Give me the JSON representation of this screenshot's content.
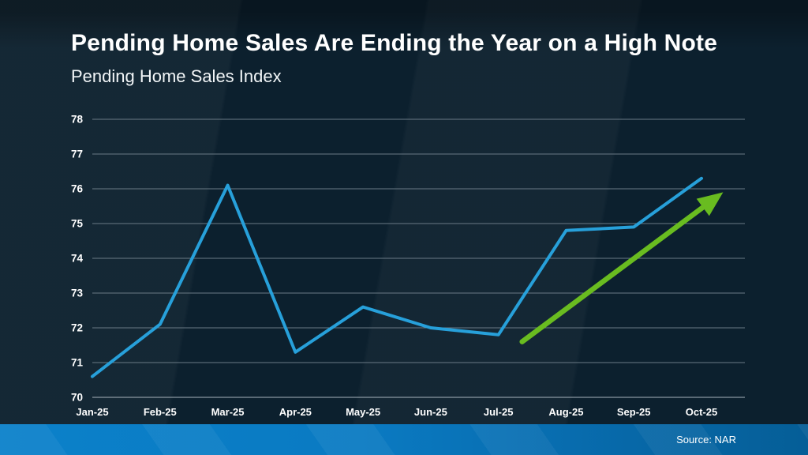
{
  "slide": {
    "title": "Pending Home Sales Are Ending the Year on a High Note",
    "subtitle": "Pending Home Sales Index",
    "source": "Source: NAR"
  },
  "colors": {
    "background": "#0c202e",
    "line": "#27a0da",
    "arrow": "#69bc20",
    "gridline": "#6a7a85",
    "baseline": "#a9b5bd",
    "tick_text": "#ffffff",
    "footer_left": "#0b81ca",
    "footer_right": "#055e97"
  },
  "chart_data": {
    "type": "line",
    "title": "Pending Home Sales Are Ending the Year on a High Note",
    "subtitle": "Pending Home Sales Index",
    "categories": [
      "Jan-25",
      "Feb-25",
      "Mar-25",
      "Apr-25",
      "May-25",
      "Jun-25",
      "Jul-25",
      "Aug-25",
      "Sep-25",
      "Oct-25"
    ],
    "series": [
      {
        "name": "Pending Home Sales Index",
        "values": [
          70.6,
          72.1,
          76.1,
          71.3,
          72.6,
          72.0,
          71.8,
          74.8,
          74.9,
          76.3
        ]
      }
    ],
    "ylim": [
      70,
      78
    ],
    "y_ticks": [
      70,
      71,
      72,
      73,
      74,
      75,
      76,
      77,
      78
    ],
    "grid": "horizontal",
    "legend": "none",
    "annotations": [
      {
        "type": "arrow",
        "color": "#69bc20",
        "from": {
          "x": 6.35,
          "y": 71.6
        },
        "to": {
          "x": 9.32,
          "y": 75.9
        }
      }
    ]
  }
}
